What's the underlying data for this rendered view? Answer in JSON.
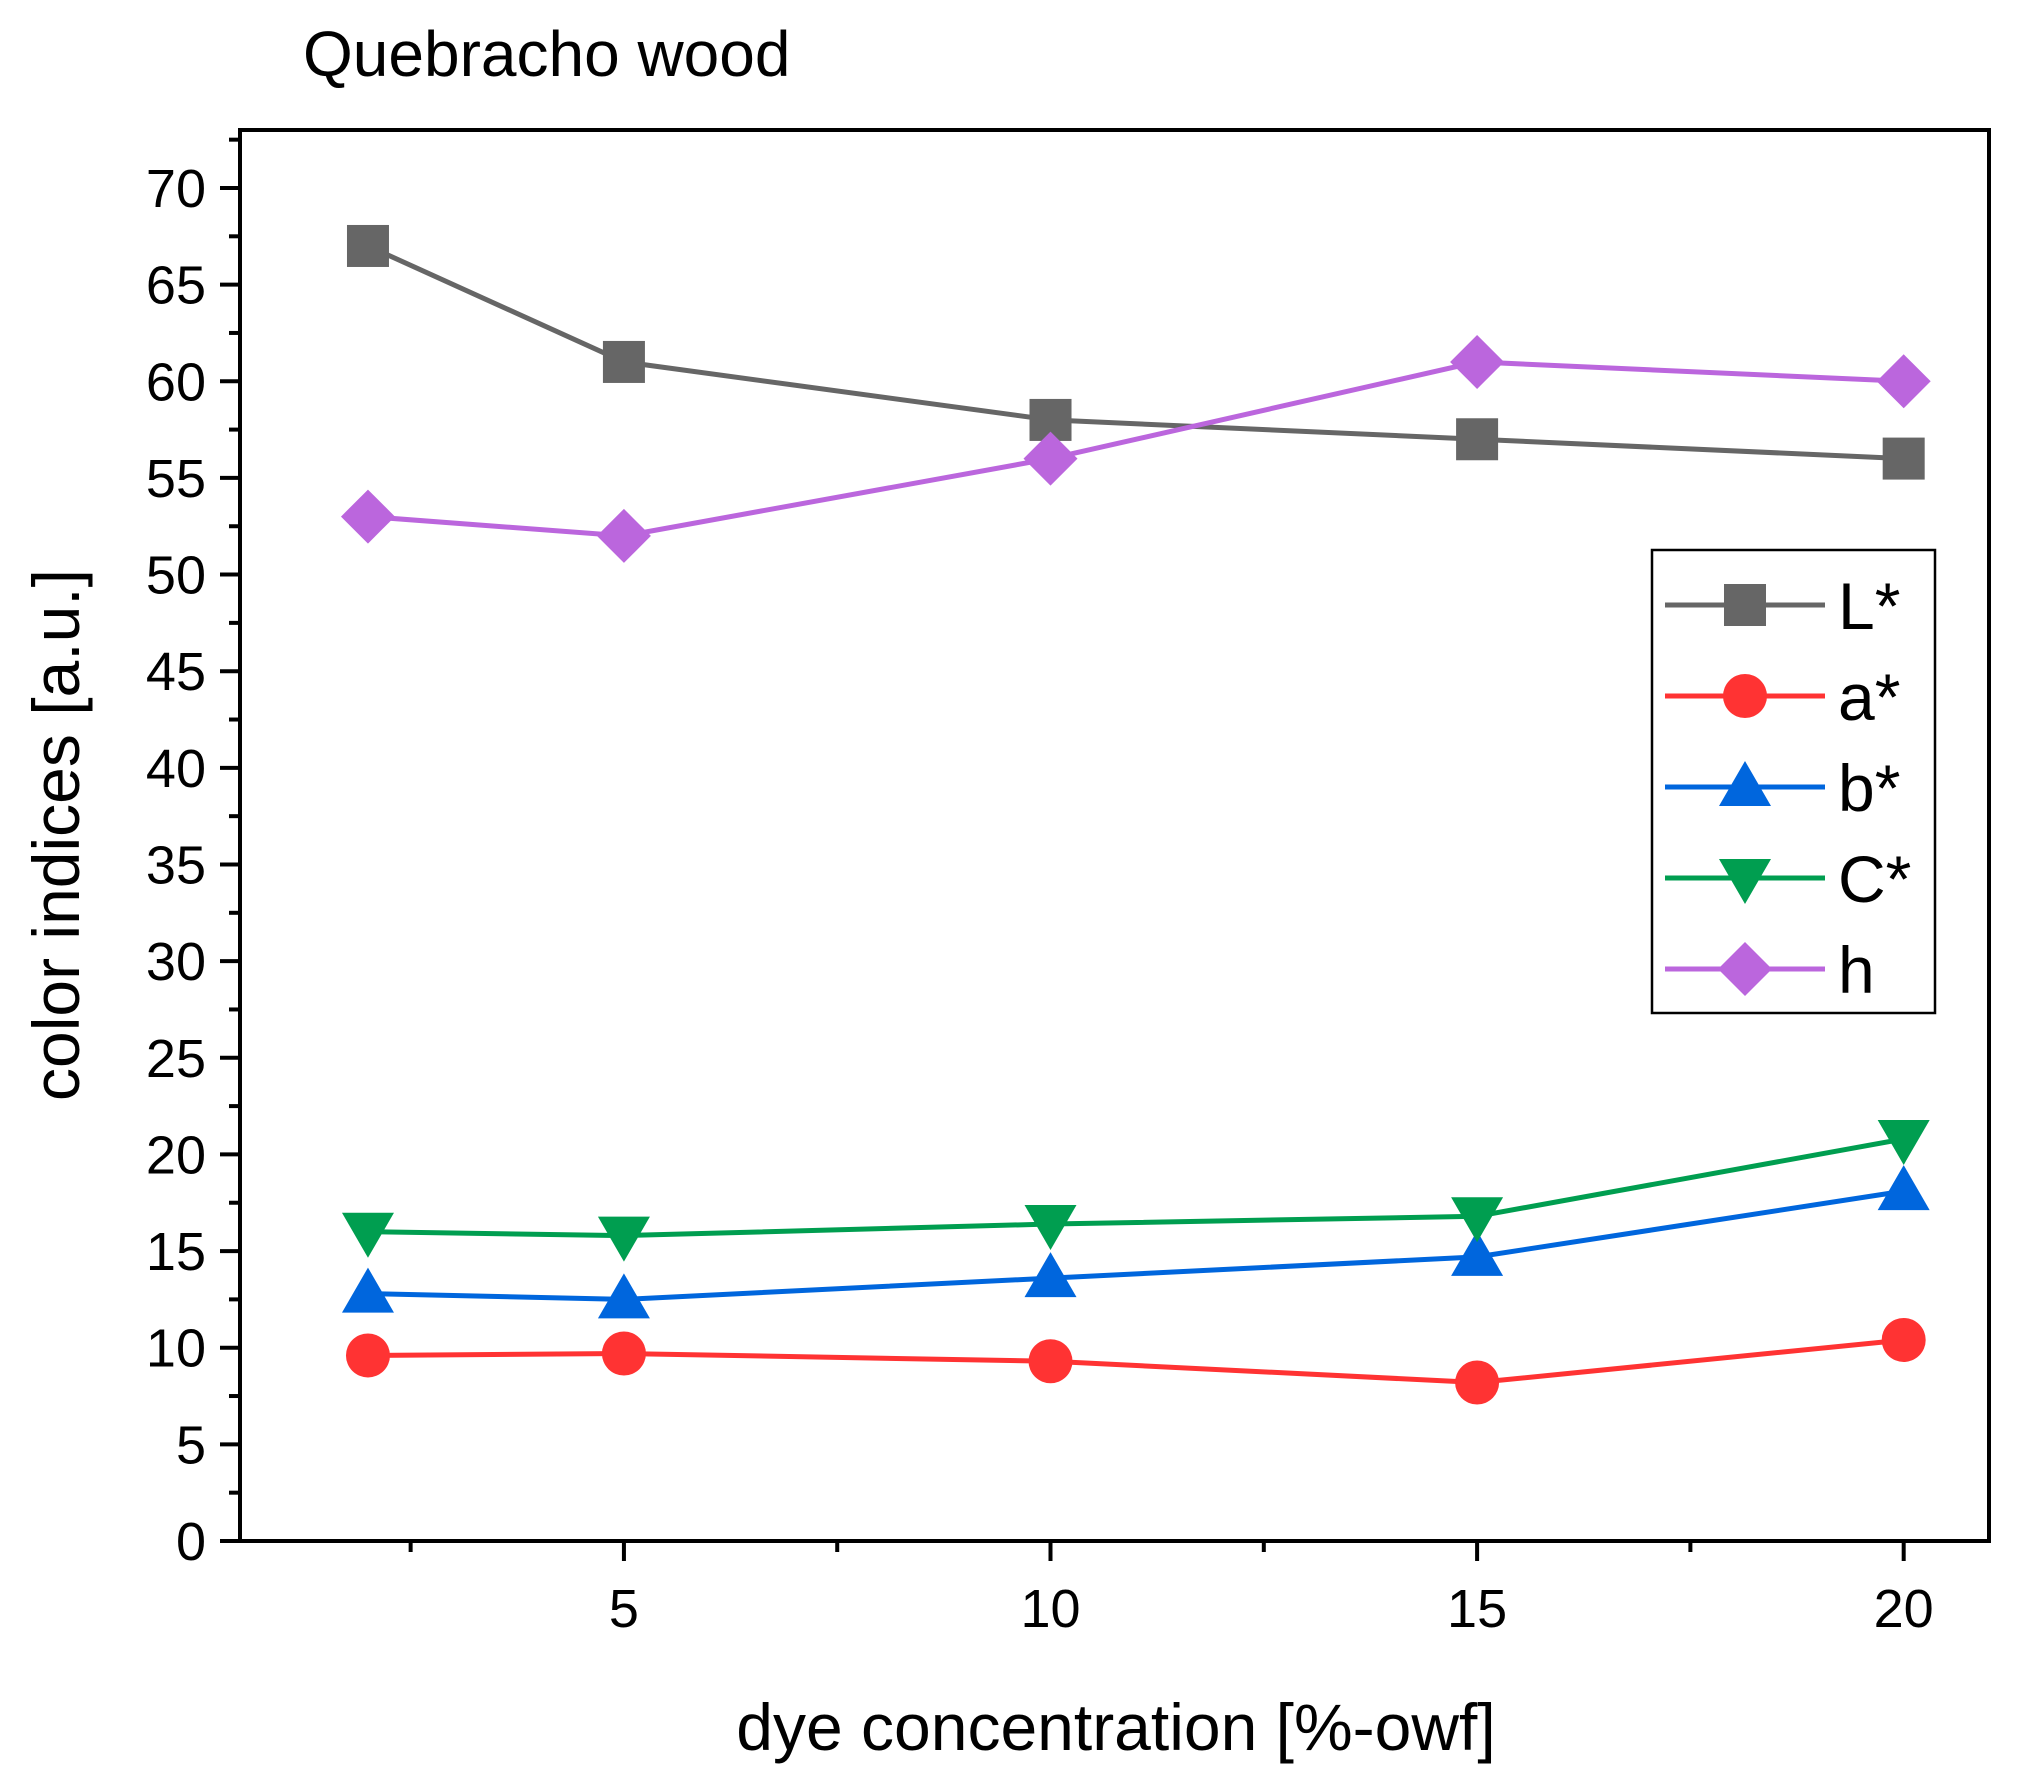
{
  "chart_data": {
    "type": "line",
    "title": "Quebracho wood",
    "xlabel": "dye concentration [%-owf]",
    "ylabel": "color indices [a.u.]",
    "x": [
      2,
      5,
      10,
      15,
      20
    ],
    "xlim": [
      0.5,
      21
    ],
    "ylim": [
      0,
      73
    ],
    "xticks": [
      5,
      10,
      15,
      20
    ],
    "xticks_minor": [
      2.5,
      7.5,
      12.5,
      17.5
    ],
    "yticks": [
      0,
      5,
      10,
      15,
      20,
      25,
      30,
      35,
      40,
      45,
      50,
      55,
      60,
      65,
      70
    ],
    "yticks_minor": [
      2.5,
      7.5,
      12.5,
      17.5,
      22.5,
      27.5,
      32.5,
      37.5,
      42.5,
      47.5,
      52.5,
      57.5,
      62.5,
      67.5,
      72.5
    ],
    "grid": false,
    "legend_position": "center-right",
    "series": [
      {
        "name": "L*",
        "color": "#666666",
        "marker": "square",
        "values": [
          67.0,
          61.0,
          58.0,
          57.0,
          56.0
        ]
      },
      {
        "name": "a*",
        "color": "#ff3333",
        "marker": "circle",
        "values": [
          9.6,
          9.7,
          9.3,
          8.2,
          10.4
        ]
      },
      {
        "name": "b*",
        "color": "#0066dd",
        "marker": "triangle-up",
        "values": [
          12.8,
          12.5,
          13.6,
          14.7,
          18.1
        ]
      },
      {
        "name": "C*",
        "color": "#009e50",
        "marker": "triangle-down",
        "values": [
          16.0,
          15.8,
          16.4,
          16.8,
          20.8
        ]
      },
      {
        "name": "h",
        "color": "#bb66dd",
        "marker": "diamond",
        "values": [
          53.0,
          52.0,
          56.0,
          61.0,
          60.0
        ]
      }
    ]
  }
}
